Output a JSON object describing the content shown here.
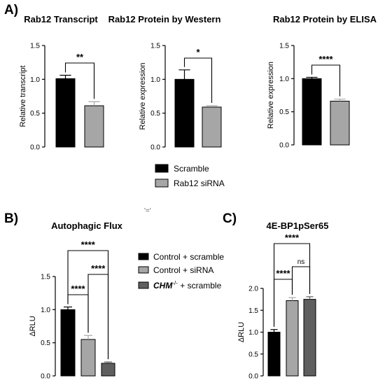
{
  "figure": {
    "panel_letters": [
      "A)",
      "B)",
      "C)"
    ],
    "mark": "'='"
  },
  "colors": {
    "scramble": "#000000",
    "sirna": "#a6a6a6",
    "chm": "#5f5f5f",
    "axis": "#000000"
  },
  "legend_a": [
    {
      "label": "Scramble",
      "color_key": "scramble"
    },
    {
      "label": "Rab12 siRNA",
      "color_key": "sirna"
    }
  ],
  "legend_b": [
    {
      "label": "Control + scramble",
      "color_key": "scramble"
    },
    {
      "label": "Control + siRNA",
      "color_key": "sirna"
    },
    {
      "prefix": "CHM",
      "superscript": "-/-",
      "suffix": " + scramble",
      "color_key": "chm"
    }
  ],
  "chart_data": [
    {
      "type": "bar",
      "title": "Rab12 Transcript",
      "ylabel": "Relative transcript",
      "ylim": [
        0,
        1.5
      ],
      "yticks": [
        "0.0",
        "0.5",
        "1.0",
        "1.5"
      ],
      "yticks_values": [
        0,
        0.5,
        1.0,
        1.5
      ],
      "bars": [
        {
          "value": 1.01,
          "error": 0.05,
          "color_key": "scramble"
        },
        {
          "value": 0.61,
          "error": 0.06,
          "color_key": "sirna"
        }
      ],
      "significance": [
        {
          "from": 0,
          "to": 1,
          "label": "**"
        }
      ]
    },
    {
      "type": "bar",
      "title": "Rab12 Protein by Western",
      "ylabel": "Relative expression",
      "ylim": [
        0,
        1.5
      ],
      "yticks": [
        "0.0",
        "0.5",
        "1.0",
        "1.5"
      ],
      "yticks_values": [
        0,
        0.5,
        1.0,
        1.5
      ],
      "bars": [
        {
          "value": 1.0,
          "error": 0.14,
          "color_key": "scramble"
        },
        {
          "value": 0.59,
          "error": 0.02,
          "color_key": "sirna"
        }
      ],
      "significance": [
        {
          "from": 0,
          "to": 1,
          "label": "*"
        }
      ]
    },
    {
      "type": "bar",
      "title": "Rab12 Protein by ELISA",
      "ylabel": "Relative expression",
      "ylim": [
        0,
        1.5
      ],
      "yticks": [
        "0.0",
        "0.5",
        "1.0",
        "1.5"
      ],
      "yticks_values": [
        0,
        0.5,
        1.0,
        1.5
      ],
      "bars": [
        {
          "value": 1.0,
          "error": 0.02,
          "color_key": "scramble"
        },
        {
          "value": 0.66,
          "error": 0.03,
          "color_key": "sirna"
        }
      ],
      "significance": [
        {
          "from": 0,
          "to": 1,
          "label": "****"
        }
      ]
    },
    {
      "type": "bar",
      "title": "Autophagic Flux",
      "ylabel": "ΔRLU",
      "ylim": [
        0,
        1.5
      ],
      "yticks": [
        "0.0",
        "0.5",
        "1.0",
        "1.5"
      ],
      "yticks_values": [
        0,
        0.5,
        1.0,
        1.5
      ],
      "bars": [
        {
          "value": 1.0,
          "error": 0.04,
          "color_key": "scramble"
        },
        {
          "value": 0.55,
          "error": 0.06,
          "color_key": "sirna"
        },
        {
          "value": 0.19,
          "error": 0.02,
          "color_key": "chm"
        }
      ],
      "significance": [
        {
          "from": 0,
          "to": 1,
          "label": "****"
        },
        {
          "from": 1,
          "to": 2,
          "label": "****"
        },
        {
          "from": 0,
          "to": 2,
          "label": "****"
        }
      ]
    },
    {
      "type": "bar",
      "title": "4E-BP1pSer65",
      "ylabel": "ΔRLU",
      "ylim": [
        0,
        2.0
      ],
      "yticks": [
        "0.0",
        "0.5",
        "1.0",
        "1.5",
        "2.0"
      ],
      "yticks_values": [
        0,
        0.5,
        1.0,
        1.5,
        2.0
      ],
      "bars": [
        {
          "value": 1.0,
          "error": 0.06,
          "color_key": "scramble"
        },
        {
          "value": 1.72,
          "error": 0.07,
          "color_key": "sirna"
        },
        {
          "value": 1.75,
          "error": 0.06,
          "color_key": "chm"
        }
      ],
      "significance": [
        {
          "from": 0,
          "to": 1,
          "label": "****"
        },
        {
          "from": 1,
          "to": 2,
          "label": "ns"
        },
        {
          "from": 0,
          "to": 2,
          "label": "****"
        }
      ]
    }
  ]
}
